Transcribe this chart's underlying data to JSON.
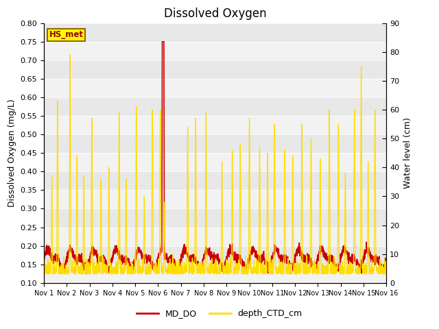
{
  "title": "Dissolved Oxygen",
  "ylabel_left": "Dissolved Oxygen (mg/L)",
  "ylabel_right": "Water level (cm)",
  "ylim_left": [
    0.1,
    0.8
  ],
  "ylim_right": [
    0,
    90
  ],
  "yticks_left": [
    0.1,
    0.15,
    0.2,
    0.25,
    0.3,
    0.35,
    0.4,
    0.45,
    0.5,
    0.55,
    0.6,
    0.65,
    0.7,
    0.75,
    0.8
  ],
  "yticks_right": [
    0,
    10,
    20,
    30,
    40,
    50,
    60,
    70,
    80,
    90
  ],
  "xtick_labels": [
    "Nov 1",
    "Nov 2",
    "Nov 3",
    "Nov 4",
    "Nov 5",
    "Nov 6",
    "Nov 7",
    "Nov 8",
    "Nov 9",
    "Nov 10",
    "Nov 11",
    "Nov 12",
    "Nov 13",
    "Nov 14",
    "Nov 15",
    "Nov 16"
  ],
  "legend_label_red": "MD_DO",
  "legend_label_yellow": "depth_CTD_cm",
  "annotation_text": "HS_met",
  "line_color_red": "#cc0000",
  "line_color_yellow": "#ffdd00",
  "bg_stripes": [
    "#f2f2f2",
    "#e8e8e8"
  ],
  "title_fontsize": 12,
  "label_fontsize": 9,
  "tick_fontsize": 8,
  "annotation_facecolor": "#ffff00",
  "annotation_edgecolor": "#996600",
  "annotation_textcolor": "#990000"
}
